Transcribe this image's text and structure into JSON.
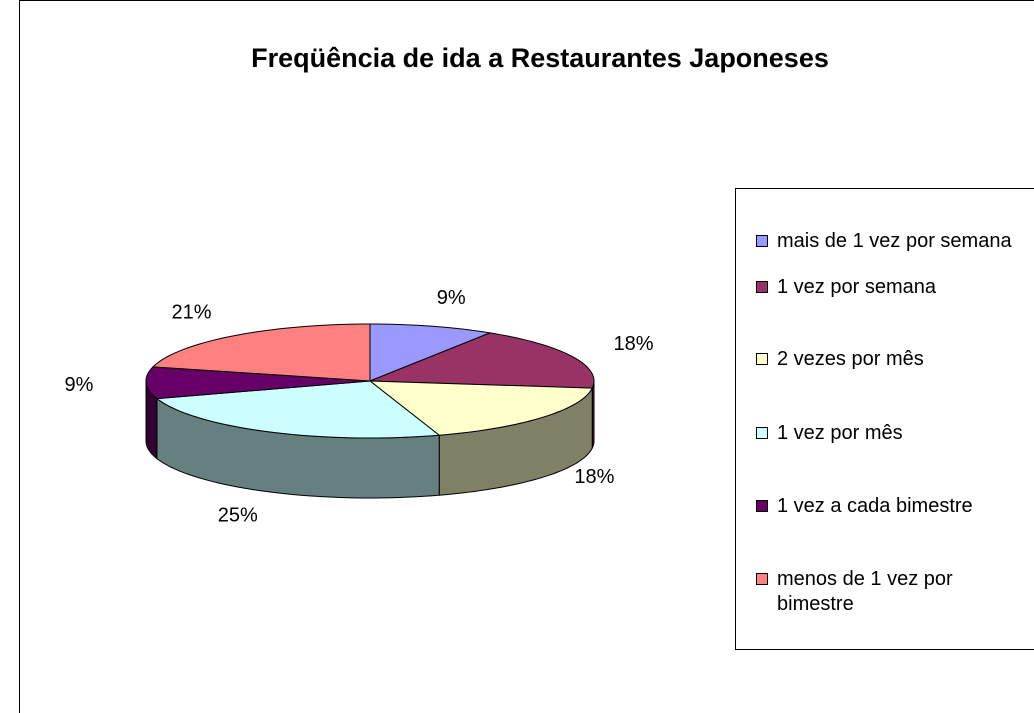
{
  "chart_data": {
    "type": "pie",
    "title": "Freqüência de ida a Restaurantes Japoneses",
    "categories": [
      "mais de 1 vez por semana",
      "1 vez por semana",
      "2 vezes por mês",
      "1 vez por mês",
      "1 vez a cada bimestre",
      "menos de 1 vez por bimestre"
    ],
    "values": [
      9,
      18,
      18,
      25,
      9,
      21
    ],
    "value_labels": [
      "9%",
      "18%",
      "18%",
      "25%",
      "9%",
      "21%"
    ],
    "colors": [
      "#9999ff",
      "#993366",
      "#ffffcc",
      "#ccffff",
      "#660066",
      "#ff8080"
    ],
    "legend": "right"
  }
}
